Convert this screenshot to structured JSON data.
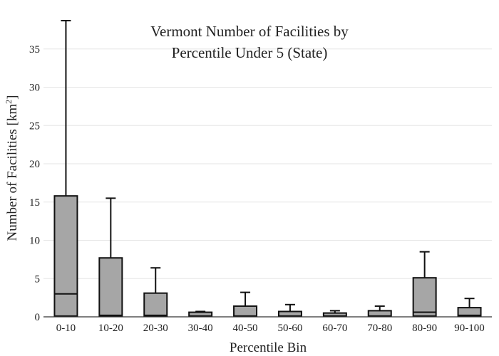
{
  "chart_data": {
    "type": "box",
    "title_lines": [
      "Vermont Number of Facilities by",
      "Percentile Under 5 (State)"
    ],
    "xlabel": "Percentile Bin",
    "ylabel_main": "Number of Facilities  [km",
    "ylabel_sup": "2",
    "ylabel_end": "]",
    "ylim": [
      0,
      38.7
    ],
    "yticks": [
      0,
      5,
      10,
      15,
      20,
      25,
      30,
      35
    ],
    "grid": true,
    "colors": {
      "box_fill": "#a6a6a6",
      "line": "#111111"
    },
    "categories": [
      "0-10",
      "10-20",
      "20-30",
      "30-40",
      "40-50",
      "50-60",
      "60-70",
      "70-80",
      "80-90",
      "90-100"
    ],
    "boxes": [
      {
        "min": 0,
        "q1": 0.1,
        "median": 3.0,
        "q3": 15.8,
        "max": 38.7
      },
      {
        "min": 0,
        "q1": 0.1,
        "median": 0.2,
        "q3": 7.7,
        "max": 15.5
      },
      {
        "min": 0,
        "q1": 0.1,
        "median": 0.2,
        "q3": 3.1,
        "max": 6.4
      },
      {
        "min": 0,
        "q1": 0.1,
        "median": 0.1,
        "q3": 0.6,
        "max": 0.7
      },
      {
        "min": 0,
        "q1": 0.1,
        "median": 0.1,
        "q3": 1.4,
        "max": 3.2
      },
      {
        "min": 0,
        "q1": 0.1,
        "median": 0.1,
        "q3": 0.7,
        "max": 1.6
      },
      {
        "min": 0,
        "q1": 0.1,
        "median": 0.1,
        "q3": 0.5,
        "max": 0.8
      },
      {
        "min": 0,
        "q1": 0.1,
        "median": 0.1,
        "q3": 0.8,
        "max": 1.4
      },
      {
        "min": 0,
        "q1": 0.1,
        "median": 0.6,
        "q3": 5.1,
        "max": 8.5
      },
      {
        "min": 0,
        "q1": 0.1,
        "median": 0.2,
        "q3": 1.2,
        "max": 2.4
      }
    ]
  }
}
